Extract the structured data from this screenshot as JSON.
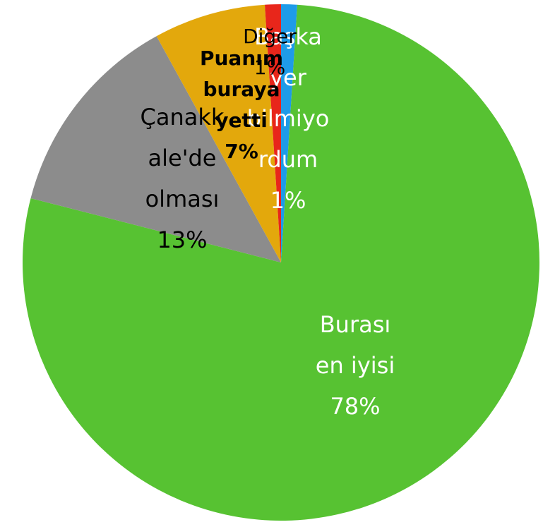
{
  "chart_data": {
    "type": "pie",
    "categories": [
      "Başka yer bilmiyordum",
      "Burası en iyisi",
      "Çanakkale'de olması",
      "Puanım buraya yetti",
      "Diğer"
    ],
    "values": [
      1,
      78,
      13,
      7,
      1
    ],
    "value_labels": [
      "1%",
      "78%",
      "13%",
      "7%",
      "1%"
    ],
    "colors": [
      "#1e9be8",
      "#57c232",
      "#8c8c8c",
      "#e3a80c",
      "#e8261b"
    ]
  }
}
